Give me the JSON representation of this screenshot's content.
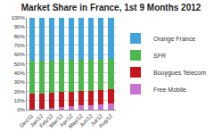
{
  "chart_data": {
    "type": "bar",
    "title": "Market Share in France, 1st 9 Months 2012",
    "categories": [
      "Dec/11",
      "Jan/12",
      "Feb/12",
      "Mar/12",
      "Apr/12",
      "May/12",
      "Jun/12",
      "Jul/12",
      "Aug/12"
    ],
    "series": [
      {
        "name": "Free Mobile",
        "color": "#c774d0",
        "values": [
          0,
          1,
          2,
          3,
          4,
          5,
          5,
          6,
          7
        ]
      },
      {
        "name": "Bouygues Telecom",
        "color": "#c4161c",
        "values": [
          17,
          16,
          16,
          16,
          15,
          15,
          15,
          15,
          15
        ]
      },
      {
        "name": "SFR",
        "color": "#4cb84c",
        "values": [
          36,
          36,
          35,
          35,
          35,
          34,
          34,
          33,
          33
        ]
      },
      {
        "name": "Orange France",
        "color": "#3fa3dc",
        "values": [
          47,
          47,
          47,
          46,
          46,
          46,
          46,
          46,
          45
        ]
      }
    ],
    "ylim": [
      0,
      100
    ],
    "yticks": [
      {
        "value": 0,
        "label": "0%"
      },
      {
        "value": 10,
        "label": "10%"
      },
      {
        "value": 20,
        "label": "20%"
      },
      {
        "value": 30,
        "label": "30%"
      },
      {
        "value": 40,
        "label": "40%"
      },
      {
        "value": 50,
        "label": "50%"
      },
      {
        "value": 60,
        "label": "60%"
      },
      {
        "value": 70,
        "label": "70%"
      },
      {
        "value": 80,
        "label": "80%"
      },
      {
        "value": 90,
        "label": "90%"
      },
      {
        "value": 100,
        "label": "100%"
      }
    ],
    "grid": true,
    "stacked": true,
    "legend": "right"
  }
}
